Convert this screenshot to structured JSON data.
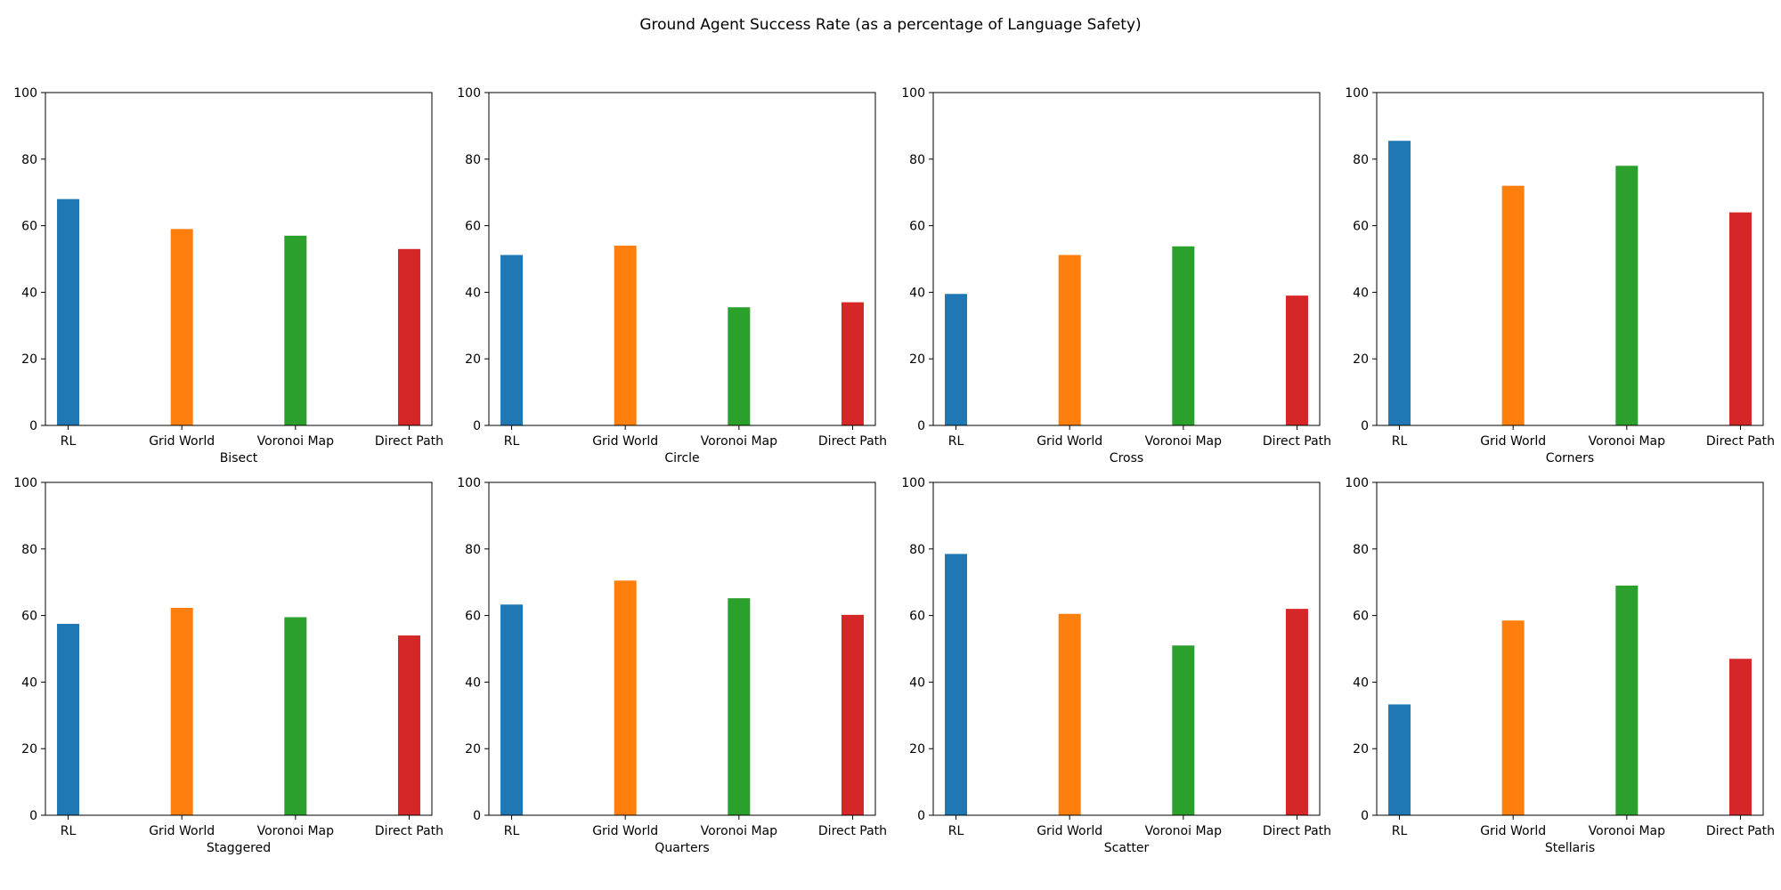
{
  "title": "Ground Agent Success Rate (as a percentage of Language Safety)",
  "colors": [
    "#1f77b4",
    "#ff7f0e",
    "#2ca02c",
    "#d62728"
  ],
  "chart_data": [
    {
      "type": "bar",
      "xlabel": "Bisect",
      "ylim": [
        0,
        100
      ],
      "yticks": [
        0,
        20,
        40,
        60,
        80,
        100
      ],
      "categories": [
        "RL",
        "Grid World",
        "Voronoi Map",
        "Direct Path"
      ],
      "values": [
        68,
        59,
        57,
        53
      ]
    },
    {
      "type": "bar",
      "xlabel": "Circle",
      "ylim": [
        0,
        100
      ],
      "yticks": [
        0,
        20,
        40,
        60,
        80,
        100
      ],
      "categories": [
        "RL",
        "Grid World",
        "Voronoi Map",
        "Direct Path"
      ],
      "values": [
        51.2,
        54,
        35.5,
        37
      ]
    },
    {
      "type": "bar",
      "xlabel": "Cross",
      "ylim": [
        0,
        100
      ],
      "yticks": [
        0,
        20,
        40,
        60,
        80,
        100
      ],
      "categories": [
        "RL",
        "Grid World",
        "Voronoi Map",
        "Direct Path"
      ],
      "values": [
        39.5,
        51.2,
        53.8,
        39
      ]
    },
    {
      "type": "bar",
      "xlabel": "Corners",
      "ylim": [
        0,
        100
      ],
      "yticks": [
        0,
        20,
        40,
        60,
        80,
        100
      ],
      "categories": [
        "RL",
        "Grid World",
        "Voronoi Map",
        "Direct Path"
      ],
      "values": [
        85.5,
        72,
        78,
        64
      ]
    },
    {
      "type": "bar",
      "xlabel": "Staggered",
      "ylim": [
        0,
        100
      ],
      "yticks": [
        0,
        20,
        40,
        60,
        80,
        100
      ],
      "categories": [
        "RL",
        "Grid World",
        "Voronoi Map",
        "Direct Path"
      ],
      "values": [
        57.5,
        62.3,
        59.5,
        54
      ]
    },
    {
      "type": "bar",
      "xlabel": "Quarters",
      "ylim": [
        0,
        100
      ],
      "yticks": [
        0,
        20,
        40,
        60,
        80,
        100
      ],
      "categories": [
        "RL",
        "Grid World",
        "Voronoi Map",
        "Direct Path"
      ],
      "values": [
        63.3,
        70.5,
        65.2,
        60.2
      ]
    },
    {
      "type": "bar",
      "xlabel": "Scatter",
      "ylim": [
        0,
        100
      ],
      "yticks": [
        0,
        20,
        40,
        60,
        80,
        100
      ],
      "categories": [
        "RL",
        "Grid World",
        "Voronoi Map",
        "Direct Path"
      ],
      "values": [
        78.5,
        60.5,
        51,
        62
      ]
    },
    {
      "type": "bar",
      "xlabel": "Stellaris",
      "ylim": [
        0,
        100
      ],
      "yticks": [
        0,
        20,
        40,
        60,
        80,
        100
      ],
      "categories": [
        "RL",
        "Grid World",
        "Voronoi Map",
        "Direct Path"
      ],
      "values": [
        33.3,
        58.5,
        69,
        47
      ]
    }
  ]
}
